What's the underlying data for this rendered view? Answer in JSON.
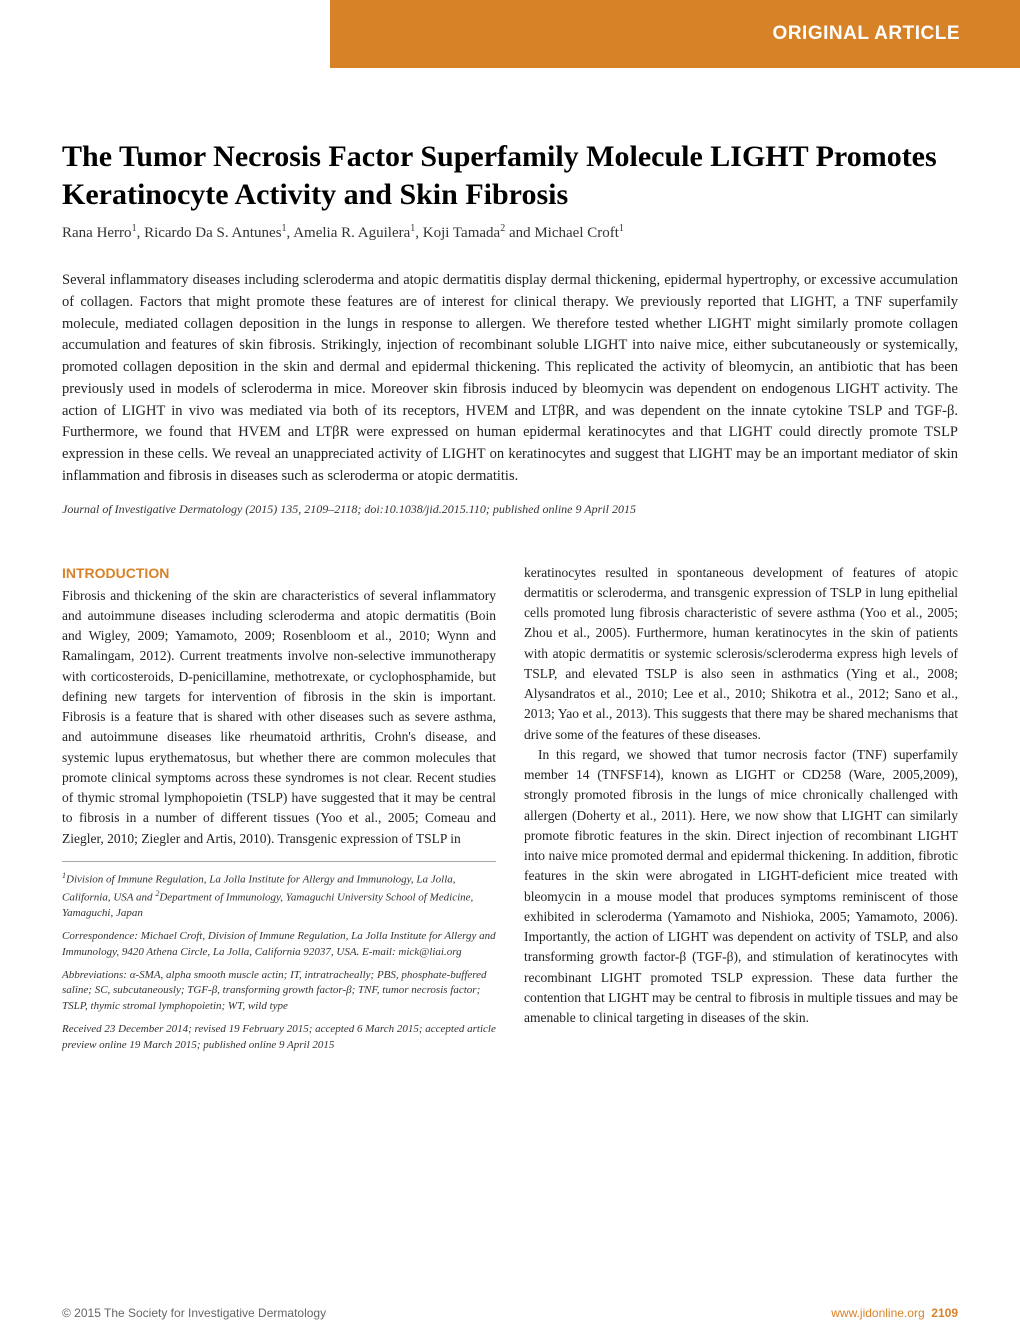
{
  "header": {
    "article_type": "ORIGINAL ARTICLE",
    "banner_color": "#d88228",
    "banner_text_color": "#ffffff"
  },
  "title": "The Tumor Necrosis Factor Superfamily Molecule LIGHT Promotes Keratinocyte Activity and Skin Fibrosis",
  "authors_html": "Rana Herro<sup>1</sup>, Ricardo Da S. Antunes<sup>1</sup>, Amelia R. Aguilera<sup>1</sup>, Koji Tamada<sup>2</sup> and Michael Croft<sup>1</sup>",
  "abstract": "Several inflammatory diseases including scleroderma and atopic dermatitis display dermal thickening, epidermal hypertrophy, or excessive accumulation of collagen. Factors that might promote these features are of interest for clinical therapy. We previously reported that LIGHT, a TNF superfamily molecule, mediated collagen deposition in the lungs in response to allergen. We therefore tested whether LIGHT might similarly promote collagen accumulation and features of skin fibrosis. Strikingly, injection of recombinant soluble LIGHT into naive mice, either subcutaneously or systemically, promoted collagen deposition in the skin and dermal and epidermal thickening. This replicated the activity of bleomycin, an antibiotic that has been previously used in models of scleroderma in mice. Moreover skin fibrosis induced by bleomycin was dependent on endogenous LIGHT activity. The action of LIGHT in vivo was mediated via both of its receptors, HVEM and LTβR, and was dependent on the innate cytokine TSLP and TGF-β. Furthermore, we found that HVEM and LTβR were expressed on human epidermal keratinocytes and that LIGHT could directly promote TSLP expression in these cells. We reveal an unappreciated activity of LIGHT on keratinocytes and suggest that LIGHT may be an important mediator of skin inflammation and fibrosis in diseases such as scleroderma or atopic dermatitis.",
  "citation": "Journal of Investigative Dermatology (2015) 135, 2109–2118; doi:10.1038/jid.2015.110; published online 9 April 2015",
  "introduction": {
    "heading": "INTRODUCTION",
    "col1_p1": "Fibrosis and thickening of the skin are characteristics of several inflammatory and autoimmune diseases including scleroderma and atopic dermatitis (Boin and Wigley, 2009; Yamamoto, 2009; Rosenbloom et al., 2010; Wynn and Ramalingam, 2012). Current treatments involve non-selective immunotherapy with corticosteroids, D-penicillamine, methotrexate, or cyclophosphamide, but defining new targets for intervention of fibrosis in the skin is important. Fibrosis is a feature that is shared with other diseases such as severe asthma, and autoimmune diseases like rheumatoid arthritis, Crohn's disease, and systemic lupus erythematosus, but whether there are common molecules that promote clinical symptoms across these syndromes is not clear. Recent studies of thymic stromal lymphopoietin (TSLP) have suggested that it may be central to fibrosis in a number of different tissues (Yoo et al., 2005; Comeau and Ziegler, 2010; Ziegler and Artis, 2010). Transgenic expression of TSLP in",
    "col2_p1": "keratinocytes resulted in spontaneous development of features of atopic dermatitis or scleroderma, and transgenic expression of TSLP in lung epithelial cells promoted lung fibrosis characteristic of severe asthma (Yoo et al., 2005; Zhou et al., 2005). Furthermore, human keratinocytes in the skin of patients with atopic dermatitis or systemic sclerosis/scleroderma express high levels of TSLP, and elevated TSLP is also seen in asthmatics (Ying et al., 2008; Alysandratos et al., 2010; Lee et al., 2010; Shikotra et al., 2012; Sano et al., 2013; Yao et al., 2013). This suggests that there may be shared mechanisms that drive some of the features of these diseases.",
    "col2_p2": "In this regard, we showed that tumor necrosis factor (TNF) superfamily member 14 (TNFSF14), known as LIGHT or CD258 (Ware, 2005,2009), strongly promoted fibrosis in the lungs of mice chronically challenged with allergen (Doherty et al., 2011). Here, we now show that LIGHT can similarly promote fibrotic features in the skin. Direct injection of recombinant LIGHT into naive mice promoted dermal and epidermal thickening. In addition, fibrotic features in the skin were abrogated in LIGHT-deficient mice treated with bleomycin in a mouse model that produces symptoms reminiscent of those exhibited in scleroderma (Yamamoto and Nishioka, 2005; Yamamoto, 2006). Importantly, the action of LIGHT was dependent on activity of TSLP, and also transforming growth factor-β (TGF-β), and stimulation of keratinocytes with recombinant LIGHT promoted TSLP expression. These data further the contention that LIGHT may be central to fibrosis in multiple tissues and may be amenable to clinical targeting in diseases of the skin."
  },
  "footnotes": {
    "affiliations_html": "<sup>1</sup>Division of Immune Regulation, La Jolla Institute for Allergy and Immunology, La Jolla, California, USA and <sup>2</sup>Department of Immunology, Yamaguchi University School of Medicine, Yamaguchi, Japan",
    "correspondence": "Correspondence: Michael Croft, Division of Immune Regulation, La Jolla Institute for Allergy and Immunology, 9420 Athena Circle, La Jolla, California 92037, USA. E-mail: mick@liai.org",
    "abbreviations": "Abbreviations: α-SMA, alpha smooth muscle actin; IT, intratracheally; PBS, phosphate-buffered saline; SC, subcutaneously; TGF-β, transforming growth factor-β; TNF, tumor necrosis factor; TSLP, thymic stromal lymphopoietin; WT, wild type",
    "received": "Received 23 December 2014; revised 19 February 2015; accepted 6 March 2015; accepted article preview online 19 March 2015; published online 9 April 2015"
  },
  "footer": {
    "copyright": "© 2015 The Society for Investigative Dermatology",
    "url": "www.jidonline.org",
    "page": "2109"
  },
  "colors": {
    "accent": "#d88228",
    "text": "#222222",
    "footnote_text": "#333333",
    "footer_grey": "#666666"
  }
}
